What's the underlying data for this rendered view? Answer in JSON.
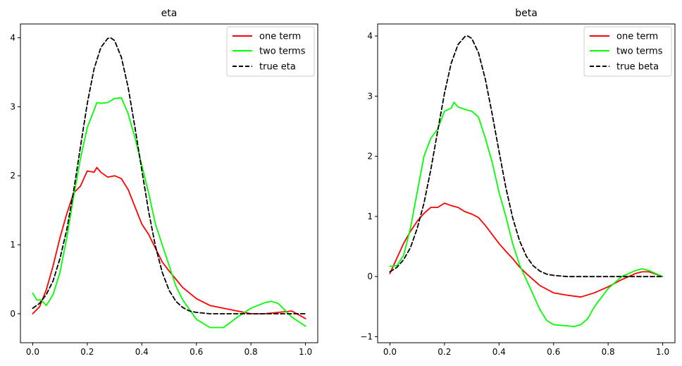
{
  "chart_data": [
    {
      "type": "line",
      "title": "eta",
      "xlim": [
        -0.045,
        1.045
      ],
      "ylim": [
        -0.42,
        4.2
      ],
      "xticks": [
        0.0,
        0.2,
        0.4,
        0.6,
        0.8,
        1.0
      ],
      "xtick_labels": [
        "0.0",
        "0.2",
        "0.4",
        "0.6",
        "0.8",
        "1.0"
      ],
      "yticks": [
        0,
        1,
        2,
        3,
        4
      ],
      "ytick_labels": [
        "0",
        "1",
        "2",
        "3",
        "4"
      ],
      "legend_position": "top-right",
      "series": [
        {
          "name": "one term",
          "color": "#ff0000",
          "style": "solid",
          "x": [
            0.0,
            0.025,
            0.05,
            0.075,
            0.1,
            0.125,
            0.15,
            0.175,
            0.2,
            0.225,
            0.235,
            0.25,
            0.275,
            0.3,
            0.325,
            0.35,
            0.375,
            0.4,
            0.425,
            0.45,
            0.475,
            0.5,
            0.525,
            0.55,
            0.6,
            0.65,
            0.7,
            0.75,
            0.8,
            0.85,
            0.9,
            0.95,
            1.0
          ],
          "y": [
            0.0,
            0.1,
            0.35,
            0.7,
            1.1,
            1.45,
            1.75,
            1.85,
            2.07,
            2.05,
            2.12,
            2.05,
            1.98,
            2.0,
            1.96,
            1.8,
            1.55,
            1.3,
            1.15,
            0.95,
            0.75,
            0.62,
            0.5,
            0.38,
            0.22,
            0.12,
            0.08,
            0.04,
            0.0,
            0.0,
            0.02,
            0.04,
            -0.07
          ]
        },
        {
          "name": "two terms",
          "color": "#00ff00",
          "style": "solid",
          "x": [
            0.0,
            0.015,
            0.03,
            0.05,
            0.075,
            0.1,
            0.125,
            0.15,
            0.175,
            0.2,
            0.225,
            0.235,
            0.25,
            0.275,
            0.3,
            0.325,
            0.35,
            0.375,
            0.4,
            0.425,
            0.45,
            0.475,
            0.5,
            0.525,
            0.55,
            0.6,
            0.65,
            0.7,
            0.75,
            0.8,
            0.85,
            0.875,
            0.9,
            0.925,
            0.95,
            1.0
          ],
          "y": [
            0.3,
            0.2,
            0.2,
            0.12,
            0.28,
            0.6,
            1.1,
            1.7,
            2.25,
            2.7,
            2.95,
            3.06,
            3.05,
            3.06,
            3.12,
            3.13,
            2.9,
            2.55,
            2.15,
            1.75,
            1.3,
            1.0,
            0.7,
            0.4,
            0.2,
            -0.08,
            -0.2,
            -0.2,
            -0.05,
            0.08,
            0.16,
            0.18,
            0.15,
            0.05,
            -0.05,
            -0.18
          ]
        },
        {
          "name": "true eta",
          "color": "#000000",
          "style": "dashed",
          "x": [
            0.0,
            0.025,
            0.05,
            0.075,
            0.1,
            0.125,
            0.15,
            0.175,
            0.2,
            0.225,
            0.25,
            0.275,
            0.2857,
            0.3,
            0.325,
            0.35,
            0.375,
            0.4,
            0.425,
            0.45,
            0.475,
            0.5,
            0.525,
            0.55,
            0.575,
            0.6,
            0.65,
            0.7,
            0.8,
            0.9,
            1.0
          ],
          "y": [
            0.08,
            0.15,
            0.28,
            0.48,
            0.8,
            1.22,
            1.78,
            2.42,
            3.05,
            3.55,
            3.86,
            3.99,
            4.0,
            3.96,
            3.72,
            3.28,
            2.7,
            2.08,
            1.48,
            0.98,
            0.6,
            0.34,
            0.18,
            0.09,
            0.04,
            0.02,
            0.0,
            0.0,
            0.0,
            0.0,
            0.0
          ]
        }
      ]
    },
    {
      "type": "line",
      "title": "beta",
      "xlim": [
        -0.045,
        1.045
      ],
      "ylim": [
        -1.1,
        4.2
      ],
      "xticks": [
        0.0,
        0.2,
        0.4,
        0.6,
        0.8,
        1.0
      ],
      "xtick_labels": [
        "0.0",
        "0.2",
        "0.4",
        "0.6",
        "0.8",
        "1.0"
      ],
      "yticks": [
        -1,
        0,
        1,
        2,
        3,
        4
      ],
      "ytick_labels": [
        "−1",
        "0",
        "1",
        "2",
        "3",
        "4"
      ],
      "legend_position": "top-right",
      "series": [
        {
          "name": "one term",
          "color": "#ff0000",
          "style": "solid",
          "x": [
            0.0,
            0.025,
            0.05,
            0.075,
            0.1,
            0.125,
            0.15,
            0.175,
            0.2,
            0.225,
            0.25,
            0.275,
            0.3,
            0.325,
            0.35,
            0.375,
            0.4,
            0.425,
            0.45,
            0.475,
            0.5,
            0.55,
            0.6,
            0.65,
            0.7,
            0.75,
            0.8,
            0.85,
            0.9,
            0.925,
            0.95,
            1.0
          ],
          "y": [
            0.05,
            0.3,
            0.55,
            0.75,
            0.92,
            1.05,
            1.15,
            1.15,
            1.22,
            1.18,
            1.15,
            1.08,
            1.04,
            0.98,
            0.85,
            0.7,
            0.55,
            0.42,
            0.3,
            0.16,
            0.05,
            -0.15,
            -0.27,
            -0.31,
            -0.34,
            -0.27,
            -0.17,
            -0.05,
            0.05,
            0.08,
            0.08,
            0.0
          ]
        },
        {
          "name": "two terms",
          "color": "#00ff00",
          "style": "solid",
          "x": [
            0.0,
            0.025,
            0.05,
            0.075,
            0.1,
            0.125,
            0.15,
            0.175,
            0.2,
            0.225,
            0.235,
            0.25,
            0.275,
            0.3,
            0.325,
            0.35,
            0.375,
            0.4,
            0.425,
            0.45,
            0.475,
            0.5,
            0.525,
            0.55,
            0.575,
            0.6,
            0.625,
            0.65,
            0.675,
            0.7,
            0.725,
            0.75,
            0.8,
            0.85,
            0.9,
            0.925,
            0.95,
            1.0
          ],
          "y": [
            0.17,
            0.18,
            0.35,
            0.8,
            1.4,
            2.0,
            2.3,
            2.45,
            2.75,
            2.8,
            2.9,
            2.82,
            2.78,
            2.75,
            2.65,
            2.3,
            1.9,
            1.4,
            1.0,
            0.55,
            0.2,
            -0.05,
            -0.3,
            -0.55,
            -0.73,
            -0.8,
            -0.81,
            -0.82,
            -0.83,
            -0.8,
            -0.7,
            -0.5,
            -0.2,
            0.0,
            0.1,
            0.13,
            0.1,
            0.0
          ]
        },
        {
          "name": "true beta",
          "color": "#000000",
          "style": "dashed",
          "x": [
            0.0,
            0.025,
            0.05,
            0.075,
            0.1,
            0.125,
            0.15,
            0.175,
            0.2,
            0.225,
            0.25,
            0.275,
            0.2857,
            0.3,
            0.325,
            0.35,
            0.375,
            0.4,
            0.425,
            0.45,
            0.475,
            0.5,
            0.525,
            0.55,
            0.575,
            0.6,
            0.65,
            0.7,
            0.8,
            0.9,
            1.0
          ],
          "y": [
            0.08,
            0.15,
            0.28,
            0.48,
            0.8,
            1.22,
            1.78,
            2.42,
            3.05,
            3.55,
            3.86,
            3.99,
            4.0,
            3.96,
            3.72,
            3.28,
            2.7,
            2.08,
            1.48,
            0.98,
            0.6,
            0.34,
            0.18,
            0.09,
            0.04,
            0.02,
            0.0,
            0.0,
            0.0,
            0.0,
            0.0
          ]
        }
      ]
    }
  ]
}
